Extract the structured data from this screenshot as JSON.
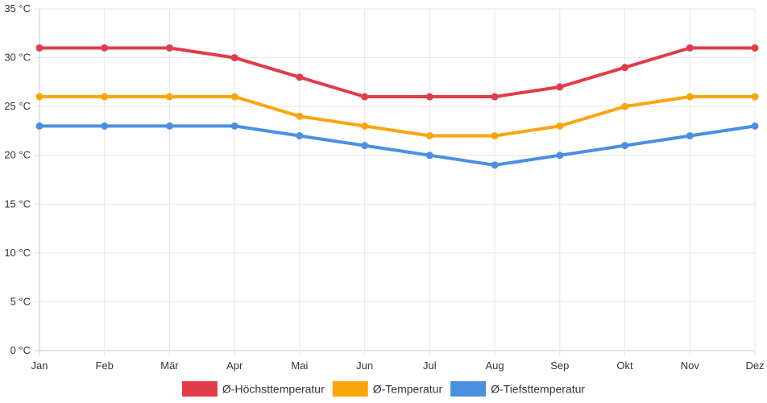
{
  "chart_data": {
    "type": "line",
    "categories": [
      "Jan",
      "Feb",
      "Mär",
      "Apr",
      "Mai",
      "Jun",
      "Jul",
      "Aug",
      "Sep",
      "Okt",
      "Nov",
      "Dez"
    ],
    "series": [
      {
        "name": "Ø-Höchsttemperatur",
        "color": "#e03c4a",
        "values": [
          31,
          31,
          31,
          30,
          28,
          26,
          26,
          26,
          27,
          29,
          31,
          31
        ]
      },
      {
        "name": "Ø-Temperatur",
        "color": "#fba50d",
        "values": [
          26,
          26,
          26,
          26,
          24,
          23,
          22,
          22,
          23,
          25,
          26,
          26
        ]
      },
      {
        "name": "Ø-Tiefsttemperatur",
        "color": "#4b8fe0",
        "values": [
          23,
          23,
          23,
          23,
          22,
          21,
          20,
          19,
          20,
          21,
          22,
          23
        ]
      }
    ],
    "y_ticks": [
      "0 °C",
      "5 °C",
      "10 °C",
      "15 °C",
      "20 °C",
      "25 °C",
      "30 °C",
      "35 °C"
    ],
    "ylim": [
      0,
      35
    ],
    "y_step": 5,
    "grid": true,
    "legend_position": "bottom-center"
  }
}
